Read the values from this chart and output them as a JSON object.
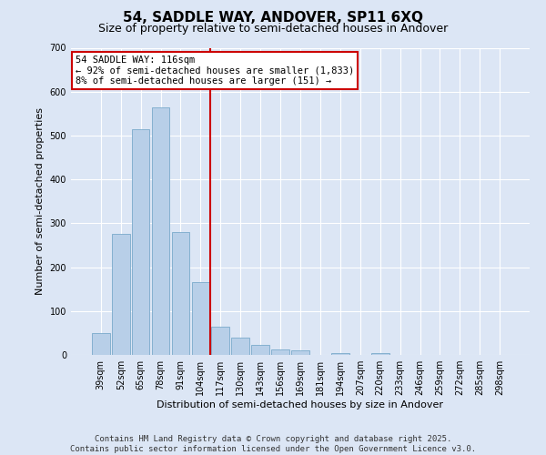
{
  "title": "54, SADDLE WAY, ANDOVER, SP11 6XQ",
  "subtitle": "Size of property relative to semi-detached houses in Andover",
  "xlabel": "Distribution of semi-detached houses by size in Andover",
  "ylabel": "Number of semi-detached properties",
  "categories": [
    "39sqm",
    "52sqm",
    "65sqm",
    "78sqm",
    "91sqm",
    "104sqm",
    "117sqm",
    "130sqm",
    "143sqm",
    "156sqm",
    "169sqm",
    "181sqm",
    "194sqm",
    "207sqm",
    "220sqm",
    "233sqm",
    "246sqm",
    "259sqm",
    "272sqm",
    "285sqm",
    "298sqm"
  ],
  "values": [
    50,
    275,
    515,
    565,
    280,
    165,
    65,
    40,
    22,
    12,
    10,
    0,
    5,
    0,
    5,
    0,
    0,
    0,
    0,
    0,
    0
  ],
  "bar_color": "#b8cfe8",
  "bar_edge_color": "#7aaacb",
  "vline_x": 5.5,
  "vline_color": "#cc0000",
  "annotation_box_edge_color": "#cc0000",
  "annotation_title": "54 SADDLE WAY: 116sqm",
  "annotation_line1": "← 92% of semi-detached houses are smaller (1,833)",
  "annotation_line2": "8% of semi-detached houses are larger (151) →",
  "ylim": [
    0,
    700
  ],
  "yticks": [
    0,
    100,
    200,
    300,
    400,
    500,
    600,
    700
  ],
  "footer_line1": "Contains HM Land Registry data © Crown copyright and database right 2025.",
  "footer_line2": "Contains public sector information licensed under the Open Government Licence v3.0.",
  "background_color": "#dce6f5",
  "title_fontsize": 11,
  "subtitle_fontsize": 9,
  "axis_label_fontsize": 8,
  "tick_fontsize": 7,
  "annotation_fontsize": 7.5,
  "footer_fontsize": 6.5
}
